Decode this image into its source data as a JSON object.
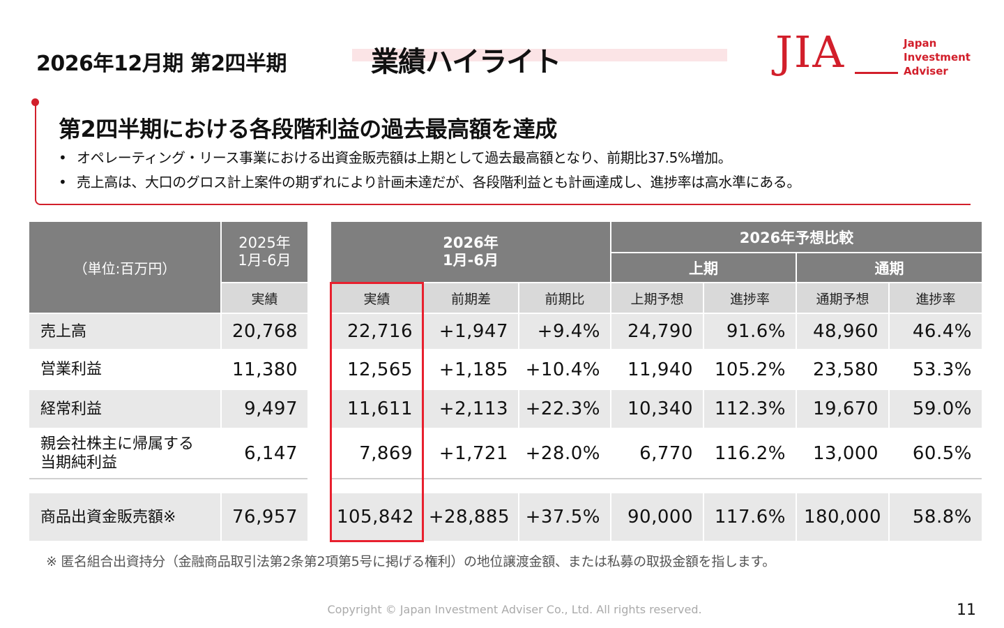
{
  "header": {
    "title": "2026年12月期 第2四半期",
    "highlight": "業績ハイライト"
  },
  "logo": {
    "mark": "JIA",
    "text_line1": "Japan",
    "text_line2": "Investment",
    "text_line3": "Adviser",
    "color": "#d21f2b"
  },
  "summary": {
    "headline": "第2四半期における各段階利益の過去最高額を達成",
    "bullets": [
      "オペレーティング・リース事業における出資金販売額は上期として過去最高額となり、前期比37.5%増加。",
      "売上高は、大口のグロス計上案件の期ずれにより計画未達だが、各段階利益とも計画達成し、進捗率は高水準にある。"
    ]
  },
  "table": {
    "unit_label": "（単位:百万円）",
    "prev_period_line1": "2025年",
    "prev_period_line2": "1月-6月",
    "curr_period_line1": "2026年",
    "curr_period_line2": "1月-6月",
    "forecast_group": "2026年予想比較",
    "half_label": "上期",
    "full_label": "通期",
    "columns": [
      "実績",
      "実績",
      "前期差",
      "前期比",
      "上期予想",
      "進捗率",
      "通期予想",
      "進捗率"
    ],
    "rows": [
      {
        "label": "売上高",
        "values": [
          "20,768",
          "22,716",
          "+1,947",
          "+9.4%",
          "24,790",
          "91.6%",
          "48,960",
          "46.4%"
        ]
      },
      {
        "label": "営業利益",
        "values": [
          "11,380",
          "12,565",
          "+1,185",
          "+10.4%",
          "11,940",
          "105.2%",
          "23,580",
          "53.3%"
        ]
      },
      {
        "label": "経常利益",
        "values": [
          "9,497",
          "11,611",
          "+2,113",
          "+22.3%",
          "10,340",
          "112.3%",
          "19,670",
          "59.0%"
        ]
      },
      {
        "label": "親会社株主に帰属する当期純利益",
        "values": [
          "6,147",
          "7,869",
          "+1,721",
          "+28.0%",
          "6,770",
          "116.2%",
          "13,000",
          "60.5%"
        ]
      }
    ],
    "extra_row": {
      "label": "商品出資金販売額※",
      "values": [
        "76,957",
        "105,842",
        "+28,885",
        "+37.5%",
        "90,000",
        "117.6%",
        "180,000",
        "58.8%"
      ]
    }
  },
  "footnote": "※ 匿名組合出資持分（金融商品取引法第2条第2項第5号に掲げる権利）の地位譲渡金額、または私募の取扱金額を指します。",
  "copyright": "Copyright © Japan Investment Adviser Co., Ltd. All rights reserved.",
  "page_number": "11"
}
